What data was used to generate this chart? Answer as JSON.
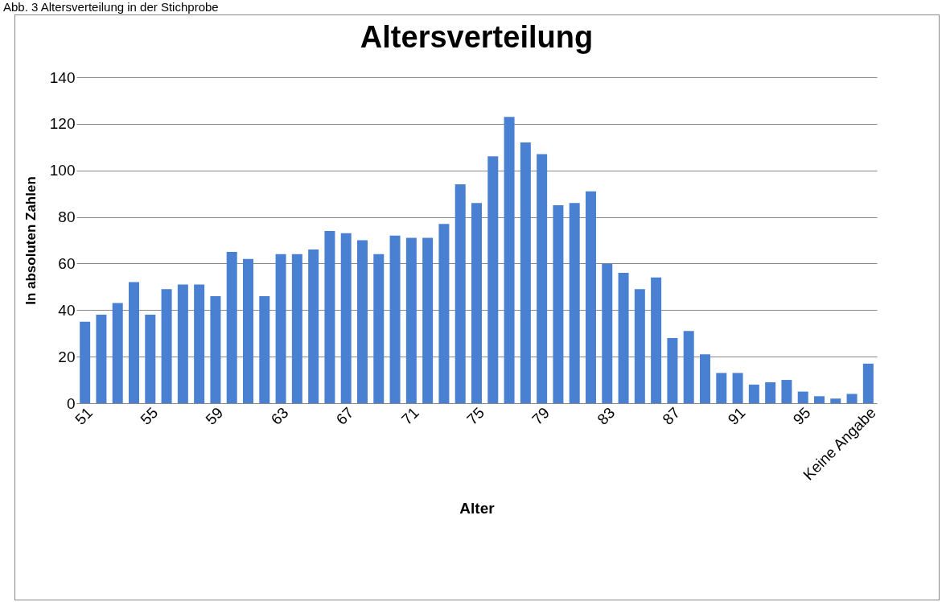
{
  "chart_data": {
    "type": "bar",
    "title": "Altersverteilung",
    "xlabel": "Alter",
    "ylabel": "In absoluten Zahlen",
    "annotations": [
      "Abb. 3 Altersverteilung in der Stichprobe"
    ],
    "categories": [
      "51",
      null,
      null,
      null,
      "55",
      null,
      null,
      null,
      "59",
      null,
      null,
      null,
      "63",
      null,
      null,
      null,
      "67",
      null,
      null,
      null,
      "71",
      null,
      null,
      null,
      "75",
      null,
      null,
      null,
      "79",
      null,
      null,
      null,
      "83",
      null,
      null,
      null,
      "87",
      null,
      null,
      null,
      "91",
      null,
      null,
      null,
      "95",
      null,
      null,
      null,
      "Keine Angabe"
    ],
    "values": [
      35,
      38,
      43,
      52,
      38,
      49,
      51,
      51,
      46,
      65,
      62,
      46,
      64,
      64,
      66,
      74,
      73,
      70,
      64,
      72,
      71,
      71,
      77,
      94,
      86,
      106,
      123,
      112,
      107,
      85,
      86,
      91,
      60,
      56,
      49,
      54,
      28,
      31,
      21,
      13,
      13,
      8,
      9,
      10,
      5,
      3,
      2,
      4,
      17
    ],
    "color": "#4a80d2",
    "ylim": [
      0,
      140
    ],
    "yticks": [
      0,
      20,
      40,
      60,
      80,
      100,
      120,
      140
    ],
    "grid": "y"
  }
}
